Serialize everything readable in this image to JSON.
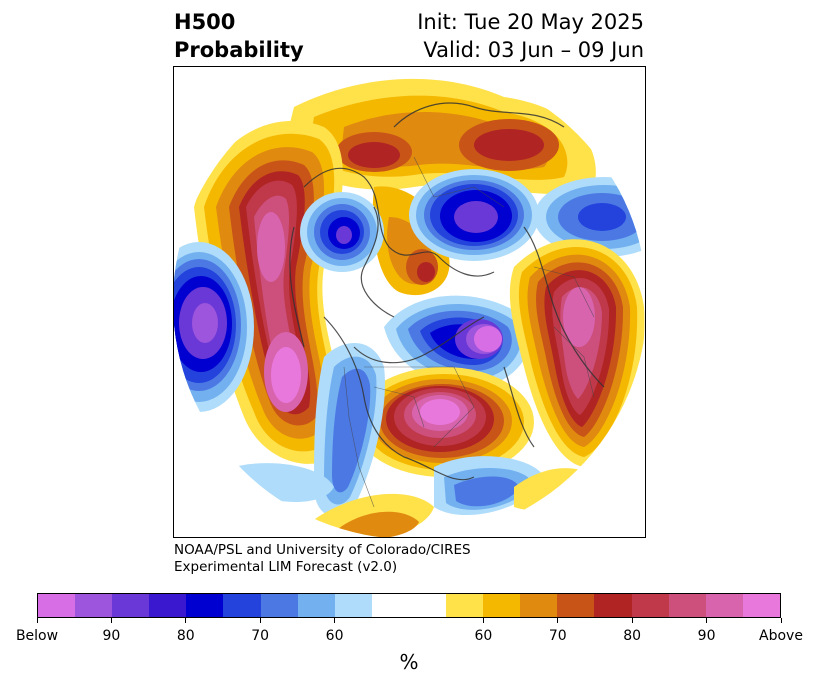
{
  "header": {
    "variable": "H500",
    "field": "Probability",
    "init": "Init: Tue 20 May 2025",
    "valid": "Valid: 03 Jun – 09 Jun"
  },
  "credit": {
    "line1": "NOAA/PSL and University of Colorado/CIRES",
    "line2": "Experimental LIM Forecast (v2.0)"
  },
  "colorbar": {
    "units": "%",
    "colors": [
      "#d86ee6",
      "#9c55dc",
      "#6a38d6",
      "#3a18d0",
      "#0000d0",
      "#2343dc",
      "#4c78e4",
      "#72b0f0",
      "#aedcfa",
      "#ffffff",
      "#ffffff",
      "#ffe14a",
      "#f5b800",
      "#e08a10",
      "#c85418",
      "#b02424",
      "#c0394a",
      "#cc4f7c",
      "#d864ae",
      "#e878dc"
    ],
    "ticks": [
      "Below",
      "90",
      "80",
      "70",
      "60",
      "60",
      "70",
      "80",
      "90",
      "Above"
    ]
  },
  "map": {
    "projection": "north-polar-stereographic"
  }
}
